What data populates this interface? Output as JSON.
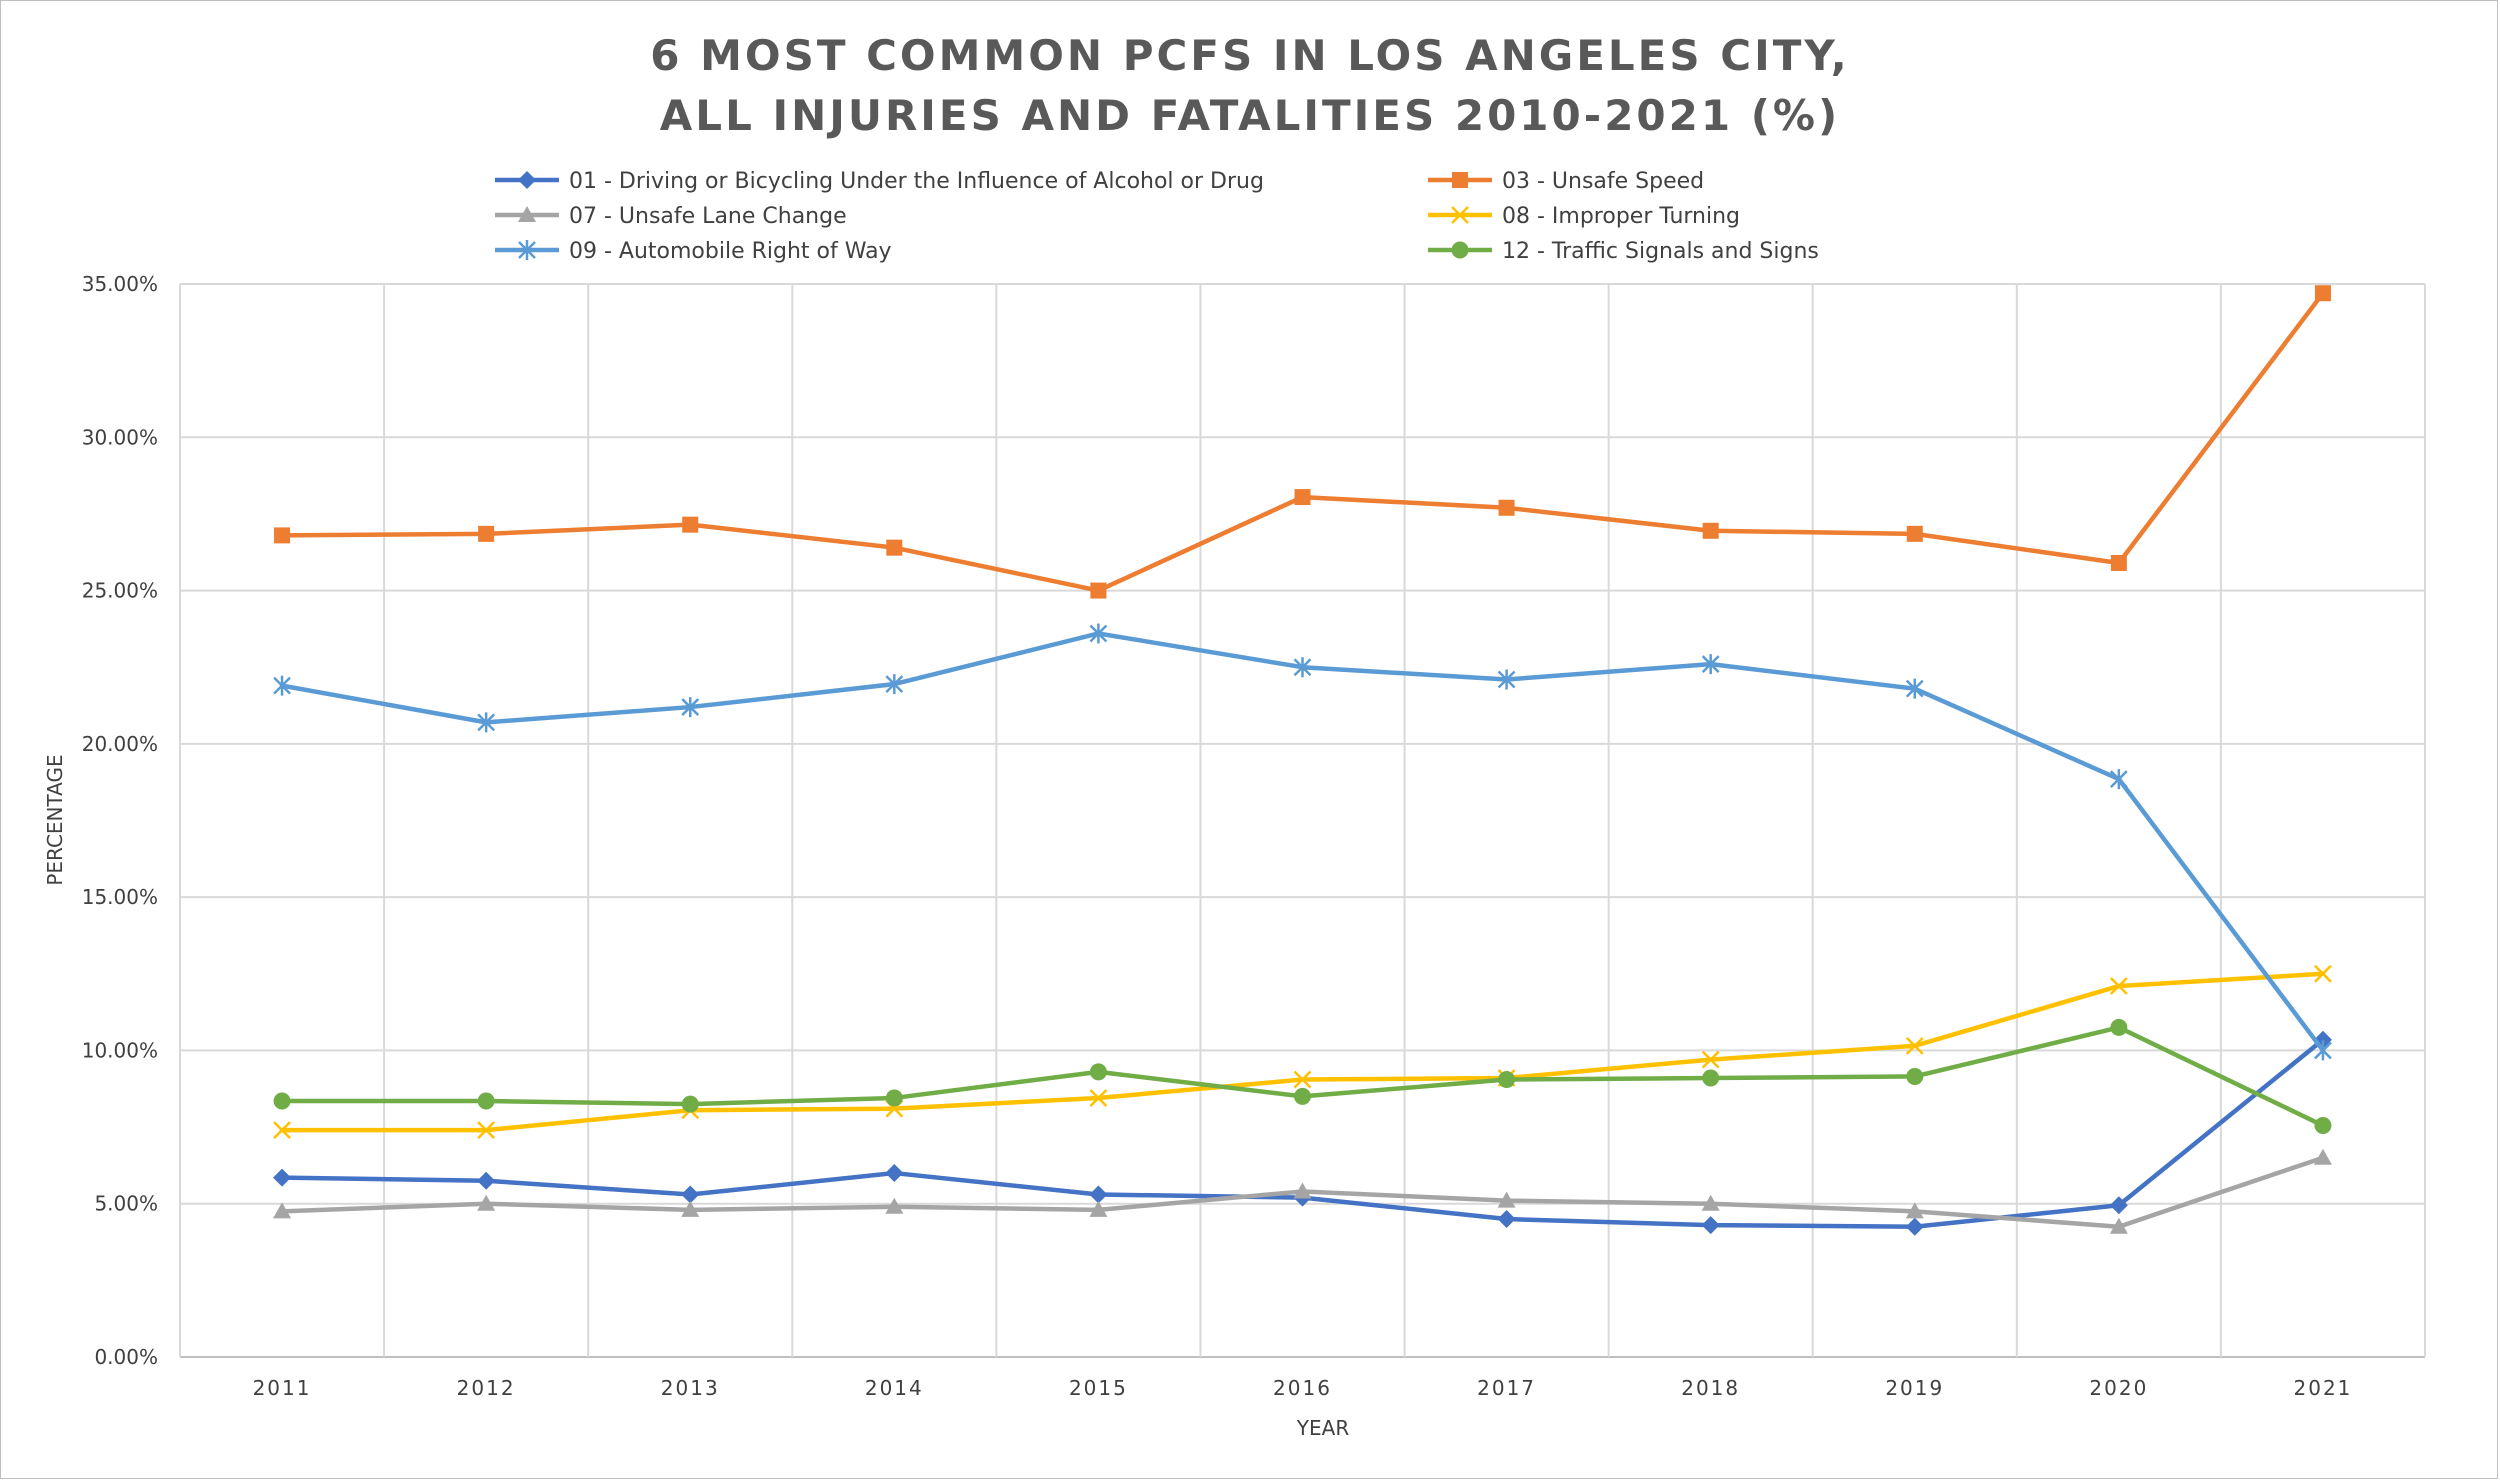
{
  "chart_data": {
    "type": "line",
    "title_lines": [
      "6 MOST COMMON PCFS IN LOS ANGELES CITY,",
      "ALL INJURIES AND FATALITIES 2010-2021 (%)"
    ],
    "xlabel": "YEAR",
    "ylabel": "PERCENTAGE",
    "categories": [
      "2011",
      "2012",
      "2013",
      "2014",
      "2015",
      "2016",
      "2017",
      "2018",
      "2019",
      "2020",
      "2021"
    ],
    "ylim": [
      0,
      35
    ],
    "yticks": [
      "0.00%",
      "5.00%",
      "10.00%",
      "15.00%",
      "20.00%",
      "25.00%",
      "30.00%",
      "35.00%"
    ],
    "grid": "on",
    "legend_position": "top",
    "series": [
      {
        "name": "01 - Driving or Bicycling Under the Influence of Alcohol or Drug",
        "color": "#4472c4",
        "marker": "diamond",
        "values": [
          5.85,
          5.75,
          5.3,
          6.0,
          5.3,
          5.2,
          4.5,
          4.3,
          4.25,
          4.95,
          10.35
        ]
      },
      {
        "name": "03 - Unsafe Speed",
        "color": "#ed7d31",
        "marker": "square",
        "values": [
          26.8,
          26.85,
          27.15,
          26.4,
          25.0,
          28.05,
          27.7,
          26.95,
          26.85,
          25.9,
          34.7
        ]
      },
      {
        "name": "07 - Unsafe Lane Change",
        "color": "#a5a5a5",
        "marker": "triangle",
        "values": [
          4.75,
          5.0,
          4.8,
          4.9,
          4.8,
          5.4,
          5.1,
          5.0,
          4.75,
          4.25,
          6.5
        ]
      },
      {
        "name": "08 - Improper Turning",
        "color": "#ffc000",
        "marker": "x",
        "values": [
          7.4,
          7.4,
          8.05,
          8.1,
          8.45,
          9.05,
          9.1,
          9.7,
          10.15,
          12.1,
          12.5
        ]
      },
      {
        "name": "09 - Automobile Right of Way",
        "color": "#5b9bd5",
        "marker": "star",
        "values": [
          21.9,
          20.7,
          21.2,
          21.95,
          23.6,
          22.5,
          22.1,
          22.6,
          21.8,
          18.85,
          10.0
        ]
      },
      {
        "name": "12 - Traffic Signals and Signs",
        "color": "#70ad47",
        "marker": "circle",
        "values": [
          8.35,
          8.35,
          8.25,
          8.45,
          9.3,
          8.5,
          9.05,
          9.1,
          9.15,
          10.75,
          7.55
        ]
      }
    ]
  }
}
